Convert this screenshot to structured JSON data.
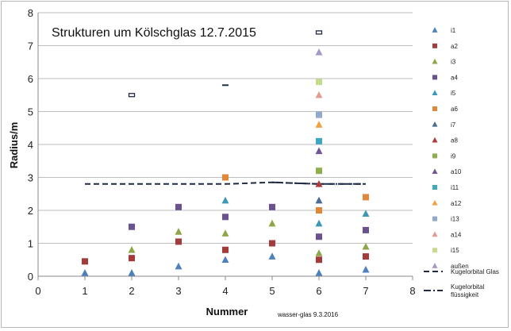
{
  "chart_data": {
    "type": "scatter",
    "title": "Strukturen um Kölschglas 12.7.2015",
    "xlabel": "Nummer",
    "ylabel": "Radius/m",
    "annotation": "wasser-glas  9.3.2016",
    "xlim": [
      0,
      8
    ],
    "ylim": [
      0,
      8
    ],
    "xticks": [
      "0",
      "1",
      "2",
      "3",
      "4",
      "5",
      "6",
      "7",
      "8"
    ],
    "yticks": [
      "0",
      "1",
      "2",
      "3",
      "4",
      "5",
      "6",
      "7",
      "8"
    ],
    "grid": "horizontal",
    "legend": "right",
    "series": [
      {
        "name": "i1",
        "color": "#4F81BD",
        "marker": "triangle",
        "points": [
          [
            1,
            0.1
          ],
          [
            2,
            0.1
          ],
          [
            3,
            0.3
          ],
          [
            4,
            0.5
          ],
          [
            5,
            0.6
          ],
          [
            6,
            0.1
          ],
          [
            7,
            0.2
          ]
        ]
      },
      {
        "name": "a2",
        "color": "#A33B3B",
        "marker": "square",
        "points": [
          [
            1,
            0.45
          ],
          [
            2,
            0.55
          ],
          [
            3,
            1.05
          ],
          [
            4,
            0.8
          ],
          [
            5,
            1.0
          ],
          [
            6,
            0.5
          ],
          [
            7,
            0.6
          ]
        ]
      },
      {
        "name": "i3",
        "color": "#8EA64A",
        "marker": "triangle",
        "points": [
          [
            2,
            0.8
          ],
          [
            3,
            1.35
          ],
          [
            4,
            1.3
          ],
          [
            5,
            1.6
          ],
          [
            6,
            0.7
          ],
          [
            7,
            0.9
          ]
        ]
      },
      {
        "name": "a4",
        "color": "#6A5190",
        "marker": "square",
        "points": [
          [
            2,
            1.5
          ],
          [
            3,
            2.1
          ],
          [
            4,
            1.8
          ],
          [
            5,
            2.1
          ],
          [
            6,
            1.2
          ],
          [
            7,
            1.4
          ]
        ]
      },
      {
        "name": "i5",
        "color": "#3B9AB3",
        "marker": "triangle",
        "points": [
          [
            4,
            2.3
          ],
          [
            6,
            1.6
          ],
          [
            7,
            1.9
          ]
        ]
      },
      {
        "name": "a6",
        "color": "#E0883A",
        "marker": "square",
        "points": [
          [
            4,
            3.0
          ],
          [
            6,
            2.0
          ],
          [
            7,
            2.4
          ]
        ]
      },
      {
        "name": "i7",
        "color": "#4A6D96",
        "marker": "triangle",
        "points": [
          [
            6,
            2.3
          ]
        ]
      },
      {
        "name": "a8",
        "color": "#B03A3A",
        "marker": "triangle",
        "points": [
          [
            6,
            2.8
          ]
        ]
      },
      {
        "name": "i9",
        "color": "#8FAE4E",
        "marker": "square",
        "points": [
          [
            6,
            3.2
          ]
        ]
      },
      {
        "name": "a10",
        "color": "#6E5796",
        "marker": "triangle",
        "points": [
          [
            6,
            3.8
          ]
        ]
      },
      {
        "name": "i11",
        "color": "#3FA6C4",
        "marker": "square",
        "points": [
          [
            6,
            4.1
          ]
        ]
      },
      {
        "name": "a12",
        "color": "#F2A23C",
        "marker": "triangle",
        "points": [
          [
            6,
            4.6
          ]
        ]
      },
      {
        "name": "i13",
        "color": "#93A9CF",
        "marker": "square",
        "points": [
          [
            6,
            4.9
          ]
        ]
      },
      {
        "name": "a14",
        "color": "#E39A90",
        "marker": "triangle",
        "points": [
          [
            6,
            5.5
          ]
        ]
      },
      {
        "name": "i15",
        "color": "#C4DB8E",
        "marker": "square",
        "points": [
          [
            6,
            5.9
          ]
        ]
      },
      {
        "name": "außen",
        "color": "#A898C6",
        "marker": "triangle",
        "points": [
          [
            6,
            6.8
          ]
        ]
      }
    ],
    "extra_markers": [
      {
        "kind": "small-box",
        "color": "#1F2A44",
        "points": [
          [
            2,
            5.5
          ],
          [
            6,
            7.4
          ]
        ]
      },
      {
        "kind": "small-dash",
        "color": "#1F2A44",
        "points": [
          [
            4,
            5.8
          ]
        ]
      }
    ],
    "lines": [
      {
        "name": "Kugelorbital Glas",
        "style": "dashed",
        "color": "#1F2A44",
        "points": [
          [
            1,
            2.8
          ],
          [
            2,
            2.8
          ],
          [
            3,
            2.8
          ],
          [
            4,
            2.8
          ],
          [
            5,
            2.85
          ],
          [
            6,
            2.8
          ],
          [
            7,
            2.8
          ]
        ]
      },
      {
        "name": "Kugelorbital flüssigkeit",
        "style": "dash-dot",
        "color": "#1F2A44",
        "points": [
          [
            5,
            2.85
          ],
          [
            6,
            2.8
          ],
          [
            7,
            2.8
          ]
        ]
      }
    ]
  }
}
